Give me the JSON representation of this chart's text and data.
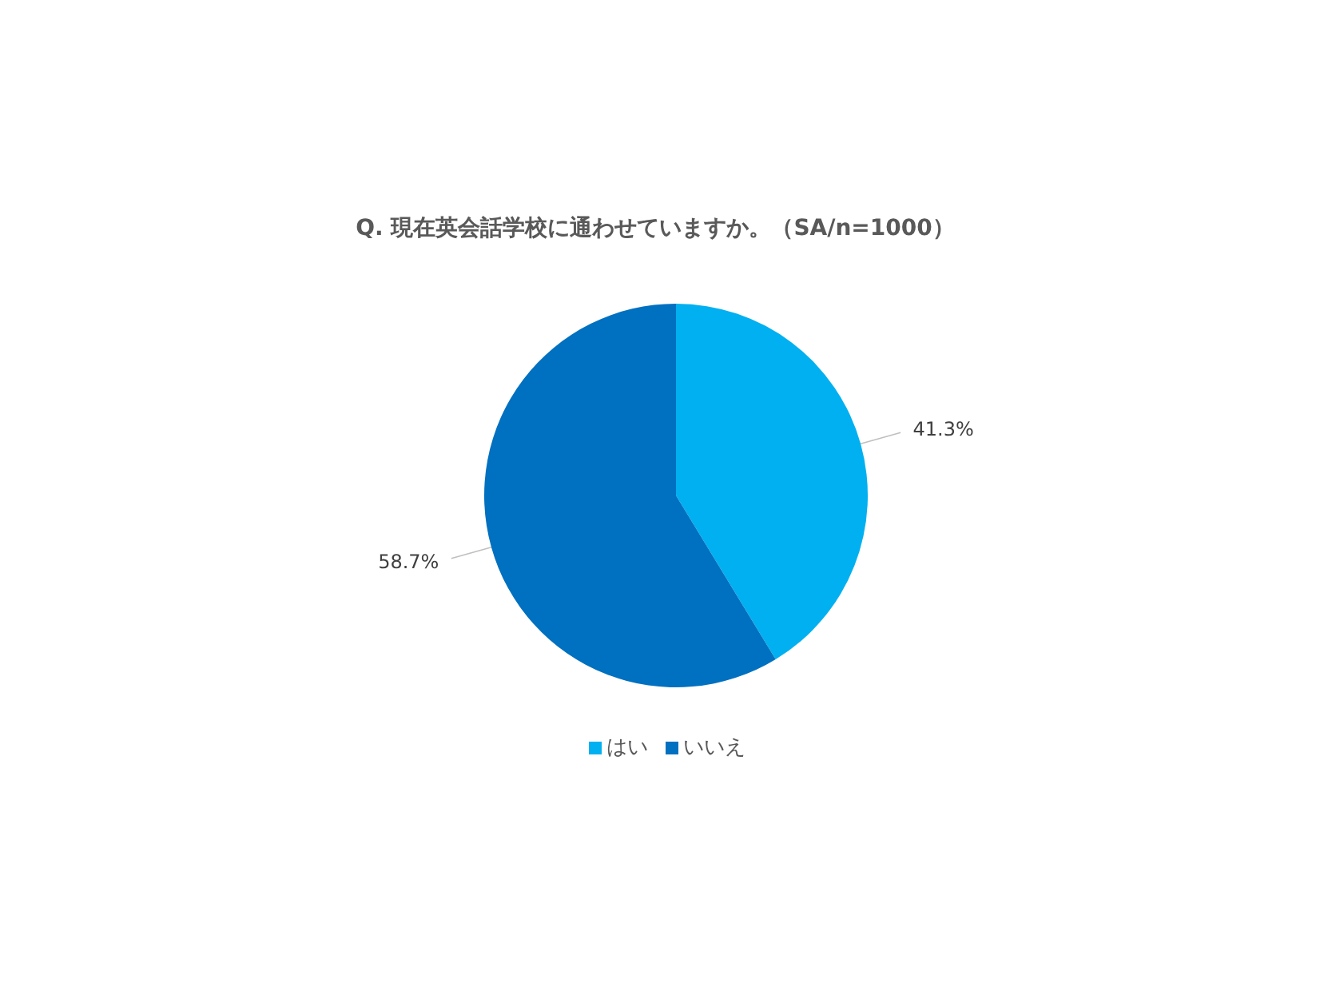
{
  "chart_data": {
    "type": "pie",
    "title": "Q. 現在英会話学校に通わせていますか。（SA/n=1000）",
    "categories": [
      "はい",
      "いいえ"
    ],
    "values": [
      41.3,
      58.7
    ],
    "colors": [
      "#00b0f0",
      "#0070c0"
    ],
    "value_labels": [
      "41.3%",
      "58.7%"
    ],
    "legend": "bottom"
  }
}
